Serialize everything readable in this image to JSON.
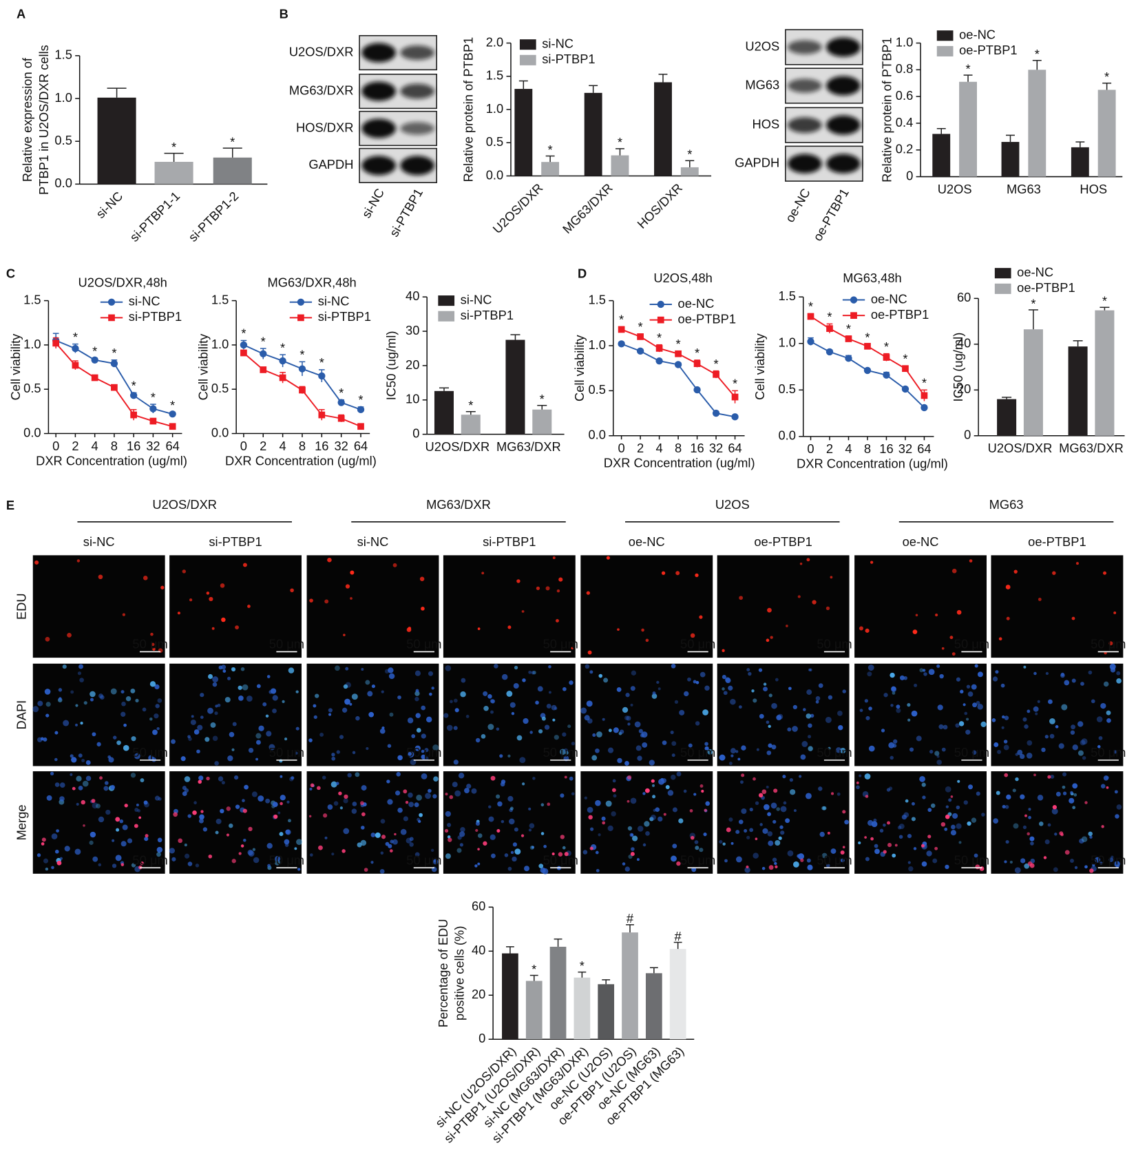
{
  "panels": [
    "A",
    "B",
    "C",
    "D",
    "E"
  ],
  "blots": [
    {
      "rows": [
        "U2OS/DXR",
        "MG63/DXR",
        "HOS/DXR",
        "GAPDH"
      ],
      "lanes": [
        "si-NC",
        "si-PTBP1"
      ]
    },
    {
      "rows": [
        "U2OS",
        "MG63",
        "HOS",
        "GAPDH"
      ],
      "lanes": [
        "oe-NC",
        "oe-PTBP1"
      ]
    }
  ],
  "micrographs": {
    "groups": [
      "U2OS/DXR",
      "MG63/DXR",
      "U2OS",
      "MG63"
    ],
    "columns": [
      "si-NC",
      "si-PTBP1",
      "si-NC",
      "si-PTBP1",
      "oe-NC",
      "oe-PTBP1",
      "oe-NC",
      "oe-PTBP1"
    ],
    "rows": [
      "EDU",
      "DAPI",
      "Merge"
    ],
    "scale_bar": "50 μm"
  },
  "chart_data": [
    {
      "type": "bar",
      "ylabel": [
        "Relative expression of",
        "PTBP1 in U2OS/DXR cells"
      ],
      "categories": [
        "si-NC",
        "si-PTBP1-1",
        "si-PTBP1-2"
      ],
      "values": [
        1.01,
        0.26,
        0.31
      ],
      "errors": [
        0.11,
        0.1,
        0.11
      ],
      "colors": [
        "#231f20",
        "#a7a9ac",
        "#808285"
      ],
      "markers": [
        null,
        "*",
        "*"
      ],
      "ylim": [
        0,
        1.5
      ],
      "yticks": [
        {
          "value": 0,
          "label": "0.0"
        },
        0.5,
        {
          "value": 1,
          "label": "1.0"
        },
        1.5
      ]
    },
    {
      "type": "bar",
      "ylabel": [
        "Relative protein of PTBP1"
      ],
      "categories": [
        "U2OS/DXR",
        "MG63/DXR",
        "HOS/DXR"
      ],
      "series": [
        {
          "name": "si-NC",
          "color": "#231f20",
          "values": [
            1.31,
            1.25,
            1.41
          ],
          "errors": [
            0.12,
            0.11,
            0.12
          ]
        },
        {
          "name": "si-PTBP1",
          "color": "#a7a9ac",
          "values": [
            0.21,
            0.31,
            0.13
          ],
          "errors": [
            0.09,
            0.1,
            0.1
          ],
          "markers": [
            "*",
            "*",
            "*"
          ]
        }
      ],
      "ylim": [
        0,
        2
      ],
      "yticks": [
        {
          "value": 0,
          "label": "0.0"
        },
        0.5,
        {
          "value": 1,
          "label": "1.0"
        },
        1.5,
        {
          "value": 2,
          "label": "2.0"
        }
      ]
    },
    {
      "type": "bar",
      "ylabel": [
        "Relative protein of PTBP1"
      ],
      "categories": [
        "U2OS",
        "MG63",
        "HOS"
      ],
      "series": [
        {
          "name": "oe-NC",
          "color": "#231f20",
          "values": [
            0.32,
            0.26,
            0.22
          ],
          "errors": [
            0.04,
            0.05,
            0.04
          ]
        },
        {
          "name": "oe-PTBP1",
          "color": "#a7a9ac",
          "values": [
            0.71,
            0.8,
            0.65
          ],
          "errors": [
            0.05,
            0.07,
            0.05
          ],
          "markers": [
            "*",
            "*",
            "*"
          ]
        }
      ],
      "ylim": [
        0,
        1
      ],
      "yticks": [
        0,
        0.2,
        0.4,
        0.6,
        0.8,
        {
          "value": 1,
          "label": "1.0"
        }
      ]
    },
    {
      "type": "line",
      "title": "U2OS/DXR,48h",
      "xlabel": "DXR Concentration (ug/ml)",
      "ylabel": [
        "Cell viability"
      ],
      "categories": [
        "0",
        "2",
        "4",
        "8",
        "16",
        "32",
        "64"
      ],
      "series": [
        {
          "name": "si-NC",
          "color": "#2a5caa",
          "marker": "circle",
          "values": [
            1.05,
            0.96,
            0.83,
            0.79,
            0.43,
            0.28,
            0.22
          ],
          "errors": [
            0.08,
            0.05,
            0.02,
            0.04,
            0.03,
            0.05,
            0.02
          ]
        },
        {
          "name": "si-PTBP1",
          "color": "#ed1c24",
          "marker": "square",
          "values": [
            1.02,
            0.77,
            0.63,
            0.52,
            0.21,
            0.14,
            0.08
          ],
          "errors": [
            0.06,
            0.05,
            0.02,
            0.02,
            0.06,
            0.02,
            0.02
          ]
        }
      ],
      "markers": [
        null,
        "*",
        "*",
        "*",
        "*",
        "*",
        "*"
      ],
      "ylim": [
        0,
        1.5
      ],
      "yticks": [
        {
          "value": 0,
          "label": "0.0"
        },
        0.5,
        {
          "value": 1,
          "label": "1.0"
        },
        1.5
      ]
    },
    {
      "type": "line",
      "title": "MG63/DXR,48h",
      "xlabel": "DXR Concentration (ug/ml)",
      "ylabel": [
        "Cell viability"
      ],
      "categories": [
        "0",
        "2",
        "4",
        "8",
        "16",
        "32",
        "64"
      ],
      "series": [
        {
          "name": "si-NC",
          "color": "#2a5caa",
          "marker": "circle",
          "values": [
            1.0,
            0.9,
            0.82,
            0.73,
            0.65,
            0.35,
            0.27
          ],
          "errors": [
            0.05,
            0.06,
            0.07,
            0.08,
            0.07,
            0.03,
            0.03
          ]
        },
        {
          "name": "si-PTBP1",
          "color": "#ed1c24",
          "marker": "square",
          "values": [
            0.91,
            0.72,
            0.63,
            0.49,
            0.21,
            0.17,
            0.08
          ],
          "errors": [
            0.03,
            0.02,
            0.06,
            0.04,
            0.06,
            0.04,
            0.02
          ]
        }
      ],
      "markers": [
        "*",
        "*",
        "*",
        "*",
        "*",
        "*",
        "*"
      ],
      "ylim": [
        0,
        1.5
      ],
      "yticks": [
        {
          "value": 0,
          "label": "0.0"
        },
        0.5,
        {
          "value": 1,
          "label": "1.0"
        },
        1.5
      ]
    },
    {
      "type": "bar",
      "ylabel": [
        "IC50 (ug/ml)"
      ],
      "categories": [
        "U2OS/DXR",
        "MG63/DXR"
      ],
      "series": [
        {
          "name": "si-NC",
          "color": "#231f20",
          "values": [
            12.6,
            27.5
          ],
          "errors": [
            0.9,
            1.5
          ]
        },
        {
          "name": "si-PTBP1",
          "color": "#a7a9ac",
          "values": [
            5.7,
            7.2
          ],
          "errors": [
            0.9,
            1.2
          ],
          "markers": [
            "*",
            "*"
          ]
        }
      ],
      "ylim": [
        0,
        40
      ],
      "yticks": [
        0,
        10,
        20,
        30,
        40
      ]
    },
    {
      "type": "line",
      "title": "U2OS,48h",
      "xlabel": "DXR Concentration (ug/ml)",
      "ylabel": [
        "Cell viability"
      ],
      "categories": [
        "0",
        "2",
        "4",
        "8",
        "16",
        "32",
        "64"
      ],
      "series": [
        {
          "name": "oe-NC",
          "color": "#2a5caa",
          "marker": "circle",
          "values": [
            1.02,
            0.94,
            0.83,
            0.79,
            0.51,
            0.25,
            0.21
          ],
          "errors": [
            0.02,
            0.02,
            0.01,
            0.02,
            0.01,
            0.01,
            0.01
          ]
        },
        {
          "name": "oe-PTBP1",
          "color": "#ed1c24",
          "marker": "square",
          "values": [
            1.18,
            1.1,
            0.97,
            0.91,
            0.8,
            0.68,
            0.43
          ],
          "errors": [
            0.03,
            0.03,
            0.04,
            0.03,
            0.04,
            0.04,
            0.07
          ]
        }
      ],
      "markers": [
        "*",
        "*",
        "*",
        "*",
        "*",
        "*",
        "*"
      ],
      "ylim": [
        0,
        1.5
      ],
      "yticks": [
        {
          "value": 0,
          "label": "0.0"
        },
        0.5,
        {
          "value": 1,
          "label": "1.0"
        },
        1.5
      ]
    },
    {
      "type": "line",
      "title": "MG63,48h",
      "xlabel": "DXR Concentration (ug/ml)",
      "ylabel": [
        "Cell viability"
      ],
      "categories": [
        "0",
        "2",
        "4",
        "8",
        "16",
        "32",
        "64"
      ],
      "series": [
        {
          "name": "oe-NC",
          "color": "#2a5caa",
          "marker": "circle",
          "values": [
            1.02,
            0.91,
            0.84,
            0.71,
            0.66,
            0.51,
            0.31
          ],
          "errors": [
            0.04,
            0.02,
            0.03,
            0.01,
            0.03,
            0.01,
            0.02
          ]
        },
        {
          "name": "oe-PTBP1",
          "color": "#ed1c24",
          "marker": "square",
          "values": [
            1.29,
            1.16,
            1.05,
            0.97,
            0.85,
            0.73,
            0.44
          ],
          "errors": [
            0.03,
            0.05,
            0.03,
            0.02,
            0.04,
            0.03,
            0.06
          ]
        }
      ],
      "markers": [
        "*",
        "*",
        "*",
        "*",
        "*",
        "*",
        "*"
      ],
      "ylim": [
        0,
        1.5
      ],
      "yticks": [
        {
          "value": 0,
          "label": "0.0"
        },
        0.5,
        {
          "value": 1,
          "label": "1.0"
        },
        1.5
      ]
    },
    {
      "type": "bar",
      "ylabel": [
        "IC50 (ug/ml)"
      ],
      "categories": [
        "U2OS/DXR",
        "MG63/DXR"
      ],
      "series": [
        {
          "name": "oe-NC",
          "color": "#231f20",
          "values": [
            16,
            39
          ],
          "errors": [
            0.8,
            2.5
          ]
        },
        {
          "name": "oe-PTBP1",
          "color": "#a7a9ac",
          "values": [
            46.5,
            54.8
          ],
          "errors": [
            8.5,
            1.3
          ],
          "markers": [
            "*",
            "*"
          ]
        }
      ],
      "ylim": [
        0,
        60
      ],
      "yticks": [
        0,
        20,
        40,
        60
      ]
    },
    {
      "type": "bar",
      "ylabel": [
        "Percentage of EDU",
        "positive cells (%)"
      ],
      "categories": [
        "si-NC (U2OS/DXR)",
        "si-PTBP1 (U2OS/DXR)",
        "si-NC (MG63/DXR)",
        "si-PTBP1 (MG63/DXR)",
        "oe-NC (U2OS)",
        "oe-PTBP1 (U2OS)",
        "oe-NC (MG63)",
        "oe-PTBP1 (MG63)"
      ],
      "values": [
        39,
        26.5,
        42,
        28,
        25,
        48.5,
        30,
        41
      ],
      "errors": [
        3,
        2.5,
        3.5,
        2.5,
        2,
        3.5,
        2.5,
        3
      ],
      "colors": [
        "#231f20",
        "#9d9fa2",
        "#808285",
        "#d1d3d4",
        "#58595b",
        "#a7a9ac",
        "#6d6e71",
        "#e6e7e8"
      ],
      "markers": [
        null,
        "*",
        null,
        "*",
        null,
        "#",
        null,
        "#"
      ],
      "ylim": [
        0,
        60
      ],
      "yticks": [
        0,
        20,
        40,
        60
      ]
    }
  ]
}
